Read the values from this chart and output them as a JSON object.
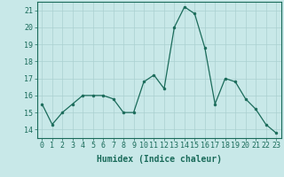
{
  "x": [
    0,
    1,
    2,
    3,
    4,
    5,
    6,
    7,
    8,
    9,
    10,
    11,
    12,
    13,
    14,
    15,
    16,
    17,
    18,
    19,
    20,
    21,
    22,
    23
  ],
  "y": [
    15.5,
    14.3,
    15.0,
    15.5,
    16.0,
    16.0,
    16.0,
    15.8,
    15.0,
    15.0,
    16.8,
    17.2,
    16.4,
    20.0,
    21.2,
    20.8,
    18.8,
    15.5,
    17.0,
    16.8,
    15.8,
    15.2,
    14.3,
    13.8
  ],
  "xlabel": "Humidex (Indice chaleur)",
  "ylim": [
    13.5,
    21.5
  ],
  "xlim": [
    -0.5,
    23.5
  ],
  "yticks": [
    14,
    15,
    16,
    17,
    18,
    19,
    20,
    21
  ],
  "xticks": [
    0,
    1,
    2,
    3,
    4,
    5,
    6,
    7,
    8,
    9,
    10,
    11,
    12,
    13,
    14,
    15,
    16,
    17,
    18,
    19,
    20,
    21,
    22,
    23
  ],
  "line_color": "#1a6b5a",
  "marker_color": "#1a6b5a",
  "bg_color": "#c8e8e8",
  "grid_color": "#aad0d0",
  "axis_color": "#1a6b5a",
  "tick_color": "#1a6b5a",
  "label_color": "#1a6b5a",
  "xlabel_fontsize": 7.0,
  "tick_fontsize": 6.0
}
